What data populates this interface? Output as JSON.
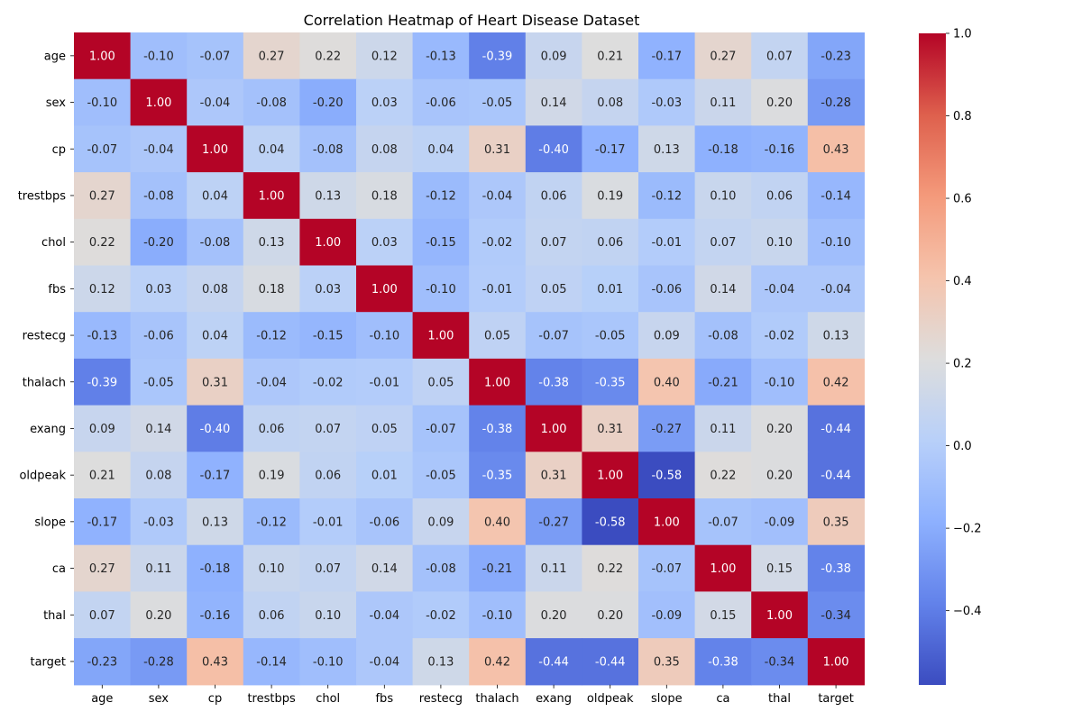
{
  "chart_data": {
    "type": "heatmap",
    "title": "Correlation Heatmap of Heart Disease Dataset",
    "xlabel": "",
    "ylabel": "",
    "x_categories": [
      "age",
      "sex",
      "cp",
      "trestbps",
      "chol",
      "fbs",
      "restecg",
      "thalach",
      "exang",
      "oldpeak",
      "slope",
      "ca",
      "thal",
      "target"
    ],
    "y_categories": [
      "age",
      "sex",
      "cp",
      "trestbps",
      "chol",
      "fbs",
      "restecg",
      "thalach",
      "exang",
      "oldpeak",
      "slope",
      "ca",
      "thal",
      "target"
    ],
    "values": [
      [
        1.0,
        -0.1,
        -0.07,
        0.27,
        0.22,
        0.12,
        -0.13,
        -0.39,
        0.09,
        0.21,
        -0.17,
        0.27,
        0.07,
        -0.23
      ],
      [
        -0.1,
        1.0,
        -0.04,
        -0.08,
        -0.2,
        0.03,
        -0.06,
        -0.05,
        0.14,
        0.08,
        -0.03,
        0.11,
        0.2,
        -0.28
      ],
      [
        -0.07,
        -0.04,
        1.0,
        0.04,
        -0.08,
        0.08,
        0.04,
        0.31,
        -0.4,
        -0.17,
        0.13,
        -0.18,
        -0.16,
        0.43
      ],
      [
        0.27,
        -0.08,
        0.04,
        1.0,
        0.13,
        0.18,
        -0.12,
        -0.04,
        0.06,
        0.19,
        -0.12,
        0.1,
        0.06,
        -0.14
      ],
      [
        0.22,
        -0.2,
        -0.08,
        0.13,
        1.0,
        0.03,
        -0.15,
        -0.02,
        0.07,
        0.06,
        -0.01,
        0.07,
        0.1,
        -0.1
      ],
      [
        0.12,
        0.03,
        0.08,
        0.18,
        0.03,
        1.0,
        -0.1,
        -0.01,
        0.05,
        0.01,
        -0.06,
        0.14,
        -0.04,
        -0.04
      ],
      [
        -0.13,
        -0.06,
        0.04,
        -0.12,
        -0.15,
        -0.1,
        1.0,
        0.05,
        -0.07,
        -0.05,
        0.09,
        -0.08,
        -0.02,
        0.13
      ],
      [
        -0.39,
        -0.05,
        0.31,
        -0.04,
        -0.02,
        -0.01,
        0.05,
        1.0,
        -0.38,
        -0.35,
        0.4,
        -0.21,
        -0.1,
        0.42
      ],
      [
        0.09,
        0.14,
        -0.4,
        0.06,
        0.07,
        0.05,
        -0.07,
        -0.38,
        1.0,
        0.31,
        -0.27,
        0.11,
        0.2,
        -0.44
      ],
      [
        0.21,
        0.08,
        -0.17,
        0.19,
        0.06,
        0.01,
        -0.05,
        -0.35,
        0.31,
        1.0,
        -0.58,
        0.22,
        0.2,
        -0.44
      ],
      [
        -0.17,
        -0.03,
        0.13,
        -0.12,
        -0.01,
        -0.06,
        0.09,
        0.4,
        -0.27,
        -0.58,
        1.0,
        -0.07,
        -0.09,
        0.35
      ],
      [
        0.27,
        0.11,
        -0.18,
        0.1,
        0.07,
        0.14,
        -0.08,
        -0.21,
        0.11,
        0.22,
        -0.07,
        1.0,
        0.15,
        -0.38
      ],
      [
        0.07,
        0.2,
        -0.16,
        0.06,
        0.1,
        -0.04,
        -0.02,
        -0.1,
        0.2,
        0.2,
        -0.09,
        0.15,
        1.0,
        -0.34
      ],
      [
        -0.23,
        -0.28,
        0.43,
        -0.14,
        -0.1,
        -0.04,
        0.13,
        0.42,
        -0.44,
        -0.44,
        0.35,
        -0.38,
        -0.34,
        1.0
      ]
    ],
    "colormap": "coolwarm",
    "color_range": [
      -0.58,
      1.0
    ],
    "colorbar_ticks": [
      1.0,
      0.8,
      0.6,
      0.4,
      0.2,
      0.0,
      -0.2,
      -0.4
    ],
    "colorbar_tick_labels": [
      "1.0",
      "0.8",
      "0.6",
      "0.4",
      "0.2",
      "0.0",
      "−0.2",
      "−0.4"
    ],
    "grid": false,
    "legend": "colorbar-right"
  }
}
